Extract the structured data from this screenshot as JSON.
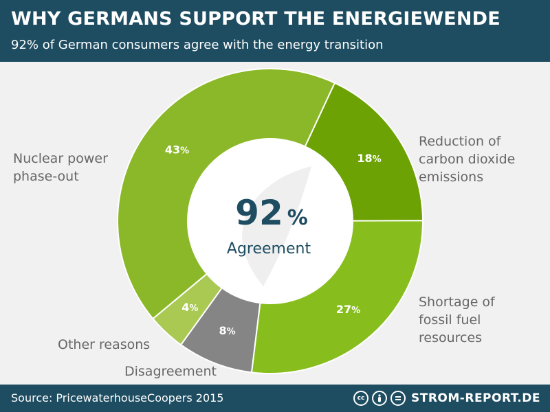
{
  "header": {
    "title": "WHY GERMANS SUPPORT THE ENERGIEWENDE",
    "subtitle": "92% of German consumers agree with the energy transition"
  },
  "chart_data": {
    "type": "pie",
    "style": "donut",
    "center": {
      "value": "92",
      "unit": "%",
      "label": "Agreement"
    },
    "slices": [
      {
        "name": "Reduction of carbon dioxide emissions",
        "lines": [
          "Reduction of",
          "carbon dioxide",
          "emissions"
        ],
        "value": 18,
        "label": "18",
        "color": "#6ca203"
      },
      {
        "name": "Shortage of fossil fuel resources",
        "lines": [
          "Shortage of",
          "fossil fuel",
          "resources"
        ],
        "value": 27,
        "label": "27",
        "color": "#87be1d"
      },
      {
        "name": "Disagreement",
        "lines": [
          "Disagreement"
        ],
        "value": 8,
        "label": "8",
        "color": "#858585"
      },
      {
        "name": "Other reasons",
        "lines": [
          "Other reasons"
        ],
        "value": 4,
        "label": "4",
        "color": "#a9c953"
      },
      {
        "name": "Nuclear power phase-out",
        "lines": [
          "Nuclear power",
          "phase-out"
        ],
        "value": 43,
        "label": "43",
        "color": "#8bb829"
      }
    ]
  },
  "footer": {
    "source": "Source: PricewaterhouseCoopers 2015",
    "license_icons": [
      "cc-icon",
      "person-icon",
      "equals-icon"
    ],
    "brand": "STROM-REPORT.DE"
  }
}
